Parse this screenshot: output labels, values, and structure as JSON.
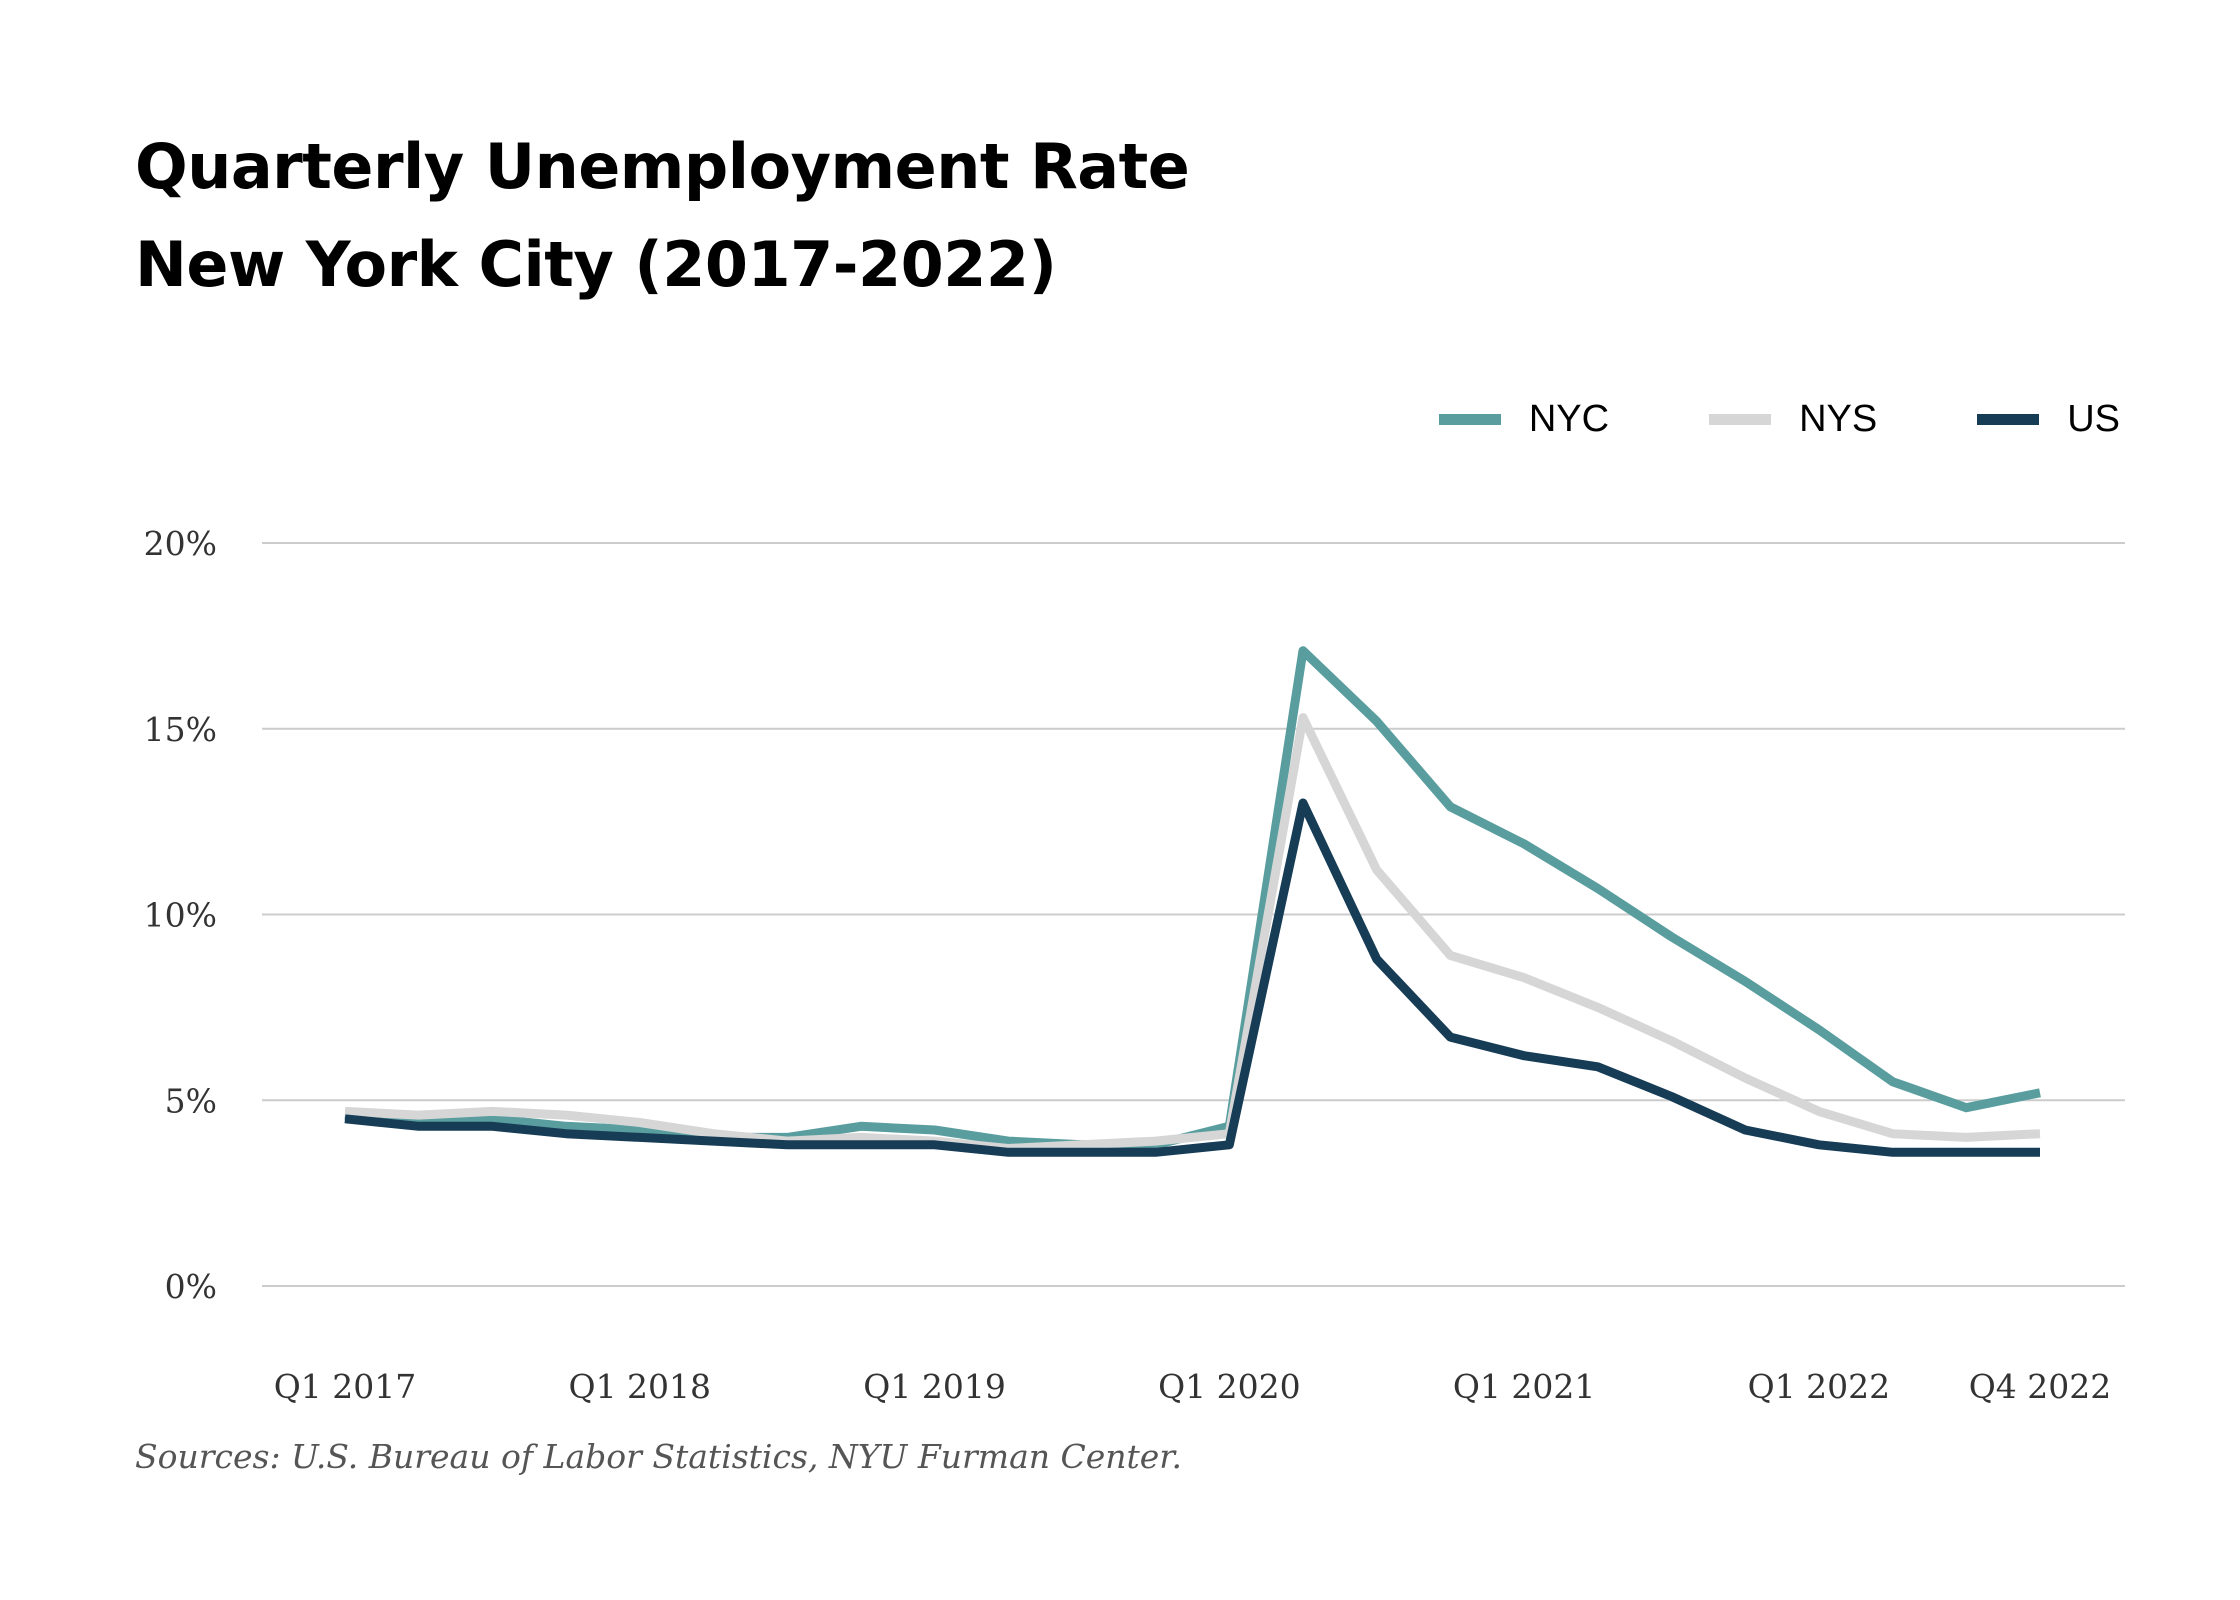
{
  "title": {
    "line1": "Quarterly Unemployment Rate",
    "line2": "New York City (2017-2022)"
  },
  "source": "Sources: U.S. Bureau of Labor Statistics, NYU Furman Center.",
  "chart_data": {
    "type": "line",
    "title": "Quarterly Unemployment Rate New York City (2017-2022)",
    "xlabel": "",
    "ylabel": "",
    "x": [
      "Q1 2017",
      "Q2 2017",
      "Q3 2017",
      "Q4 2017",
      "Q1 2018",
      "Q2 2018",
      "Q3 2018",
      "Q4 2018",
      "Q1 2019",
      "Q2 2019",
      "Q3 2019",
      "Q4 2019",
      "Q1 2020",
      "Q2 2020",
      "Q3 2020",
      "Q4 2020",
      "Q1 2021",
      "Q2 2021",
      "Q3 2021",
      "Q4 2021",
      "Q1 2022",
      "Q2 2022",
      "Q3 2022",
      "Q4 2022"
    ],
    "x_tick_labels": [
      "Q1 2017",
      "Q1 2018",
      "Q1 2019",
      "Q1 2020",
      "Q1 2021",
      "Q1 2022",
      "Q4 2022"
    ],
    "y_tick_labels": [
      "0%",
      "5%",
      "10%",
      "15%",
      "20%"
    ],
    "ylim": [
      0,
      20
    ],
    "y_ticks": [
      0,
      5,
      10,
      15,
      20
    ],
    "grid": true,
    "legend_position": "top-right",
    "series": [
      {
        "name": "NYC",
        "color": "#599d9e",
        "values": [
          4.6,
          4.4,
          4.5,
          4.3,
          4.2,
          4.0,
          4.0,
          4.3,
          4.2,
          3.9,
          3.8,
          3.8,
          4.3,
          17.1,
          15.2,
          12.9,
          11.9,
          10.7,
          9.4,
          8.2,
          6.9,
          5.5,
          4.8,
          5.2
        ]
      },
      {
        "name": "NYS",
        "color": "#d6d6d6",
        "values": [
          4.7,
          4.6,
          4.7,
          4.6,
          4.4,
          4.1,
          3.9,
          4.0,
          3.9,
          3.7,
          3.8,
          3.9,
          4.1,
          15.3,
          11.2,
          8.9,
          8.3,
          7.5,
          6.6,
          5.6,
          4.7,
          4.1,
          4.0,
          4.1
        ]
      },
      {
        "name": "US",
        "color": "#173c56",
        "values": [
          4.5,
          4.3,
          4.3,
          4.1,
          4.0,
          3.9,
          3.8,
          3.8,
          3.8,
          3.6,
          3.6,
          3.6,
          3.8,
          13.0,
          8.8,
          6.7,
          6.2,
          5.9,
          5.1,
          4.2,
          3.8,
          3.6,
          3.6,
          3.6
        ]
      }
    ]
  }
}
